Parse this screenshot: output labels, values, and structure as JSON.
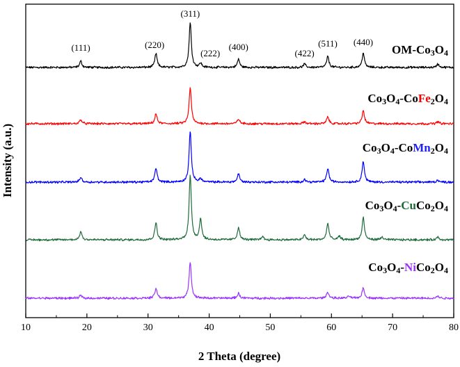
{
  "chart_data": {
    "type": "line",
    "xlabel": "2 Theta (degree)",
    "ylabel": "Intensity (a.u.)",
    "xlim": [
      10,
      80
    ],
    "xticks": [
      "10",
      "20",
      "30",
      "40",
      "50",
      "60",
      "70",
      "80"
    ],
    "grid": false,
    "annotations": [
      {
        "text": "(111)",
        "x": 19.0
      },
      {
        "text": "(220)",
        "x": 31.3
      },
      {
        "text": "(311)",
        "x": 36.9
      },
      {
        "text": "(222)",
        "x": 39.5
      },
      {
        "text": "(400)",
        "x": 44.8
      },
      {
        "text": "(422)",
        "x": 55.6
      },
      {
        "text": "(511)",
        "x": 59.4
      },
      {
        "text": "(440)",
        "x": 65.2
      }
    ],
    "series": [
      {
        "label": [
          {
            "t": "OM-Co",
            "color": "#000000"
          },
          {
            "t": "3",
            "sub": true,
            "color": "#000000"
          },
          {
            "t": "O",
            "color": "#000000"
          },
          {
            "t": "4",
            "sub": true,
            "color": "#000000"
          }
        ],
        "color": "#000000",
        "peaks": [
          [
            19.0,
            9
          ],
          [
            31.3,
            20
          ],
          [
            36.9,
            64
          ],
          [
            38.6,
            6
          ],
          [
            44.8,
            12
          ],
          [
            55.6,
            5
          ],
          [
            59.4,
            16
          ],
          [
            65.2,
            21
          ],
          [
            77.4,
            5
          ]
        ]
      },
      {
        "label": [
          {
            "t": "Co",
            "color": "#000000"
          },
          {
            "t": "3",
            "sub": true,
            "color": "#000000"
          },
          {
            "t": "O",
            "color": "#000000"
          },
          {
            "t": "4",
            "sub": true,
            "color": "#000000"
          },
          {
            "t": "-Co",
            "color": "#000000"
          },
          {
            "t": "Fe",
            "color": "#ff0000"
          },
          {
            "t": "2",
            "sub": true,
            "color": "#000000"
          },
          {
            "t": "O",
            "color": "#000000"
          },
          {
            "t": "4",
            "sub": true,
            "color": "#000000"
          }
        ],
        "color": "#ff0000",
        "peaks": [
          [
            19.0,
            6
          ],
          [
            31.3,
            14
          ],
          [
            36.9,
            52
          ],
          [
            44.8,
            7
          ],
          [
            55.6,
            3
          ],
          [
            59.4,
            10
          ],
          [
            65.2,
            19
          ],
          [
            77.4,
            3
          ]
        ]
      },
      {
        "label": [
          {
            "t": "Co",
            "color": "#000000"
          },
          {
            "t": "3",
            "sub": true,
            "color": "#000000"
          },
          {
            "t": "O",
            "color": "#000000"
          },
          {
            "t": "4",
            "sub": true,
            "color": "#000000"
          },
          {
            "t": "-Co",
            "color": "#000000"
          },
          {
            "t": "Mn",
            "color": "#1e1eff"
          },
          {
            "t": "2",
            "sub": true,
            "color": "#000000"
          },
          {
            "t": "O",
            "color": "#000000"
          },
          {
            "t": "4",
            "sub": true,
            "color": "#000000"
          }
        ],
        "color": "#0000ff",
        "peaks": [
          [
            19.0,
            7
          ],
          [
            31.3,
            20
          ],
          [
            36.9,
            72
          ],
          [
            38.6,
            5
          ],
          [
            44.8,
            12
          ],
          [
            55.6,
            4
          ],
          [
            59.4,
            20
          ],
          [
            65.2,
            30
          ],
          [
            77.4,
            3
          ]
        ]
      },
      {
        "label": [
          {
            "t": "Co",
            "color": "#000000"
          },
          {
            "t": "3",
            "sub": true,
            "color": "#000000"
          },
          {
            "t": "O",
            "color": "#000000"
          },
          {
            "t": "4",
            "sub": true,
            "color": "#000000"
          },
          {
            "t": "-",
            "color": "#000000"
          },
          {
            "t": "Cu",
            "color": "#1e6b3a"
          },
          {
            "t": "Co",
            "color": "#000000"
          },
          {
            "t": "2",
            "sub": true,
            "color": "#000000"
          },
          {
            "t": "O",
            "color": "#000000"
          },
          {
            "t": "4",
            "sub": true,
            "color": "#000000"
          }
        ],
        "color": "#1e6b3a",
        "peaks": [
          [
            19.0,
            12
          ],
          [
            31.3,
            25
          ],
          [
            36.9,
            92
          ],
          [
            38.6,
            30
          ],
          [
            44.8,
            18
          ],
          [
            48.7,
            5
          ],
          [
            55.6,
            7
          ],
          [
            59.4,
            24
          ],
          [
            61.3,
            5
          ],
          [
            65.2,
            32
          ],
          [
            68.3,
            4
          ],
          [
            77.4,
            4
          ]
        ]
      },
      {
        "label": [
          {
            "t": "Co",
            "color": "#000000"
          },
          {
            "t": "3",
            "sub": true,
            "color": "#000000"
          },
          {
            "t": "O",
            "color": "#000000"
          },
          {
            "t": "4",
            "sub": true,
            "color": "#000000"
          },
          {
            "t": "-",
            "color": "#000000"
          },
          {
            "t": "Ni",
            "color": "#9933ff"
          },
          {
            "t": "Co",
            "color": "#000000"
          },
          {
            "t": "2",
            "sub": true,
            "color": "#000000"
          },
          {
            "t": "O",
            "color": "#000000"
          },
          {
            "t": "4",
            "sub": true,
            "color": "#000000"
          }
        ],
        "color": "#9933ff",
        "peaks": [
          [
            19.0,
            4
          ],
          [
            31.3,
            14
          ],
          [
            36.9,
            52
          ],
          [
            44.8,
            7
          ],
          [
            59.4,
            9
          ],
          [
            62.9,
            3
          ],
          [
            65.2,
            15
          ],
          [
            77.4,
            3
          ]
        ]
      }
    ]
  }
}
